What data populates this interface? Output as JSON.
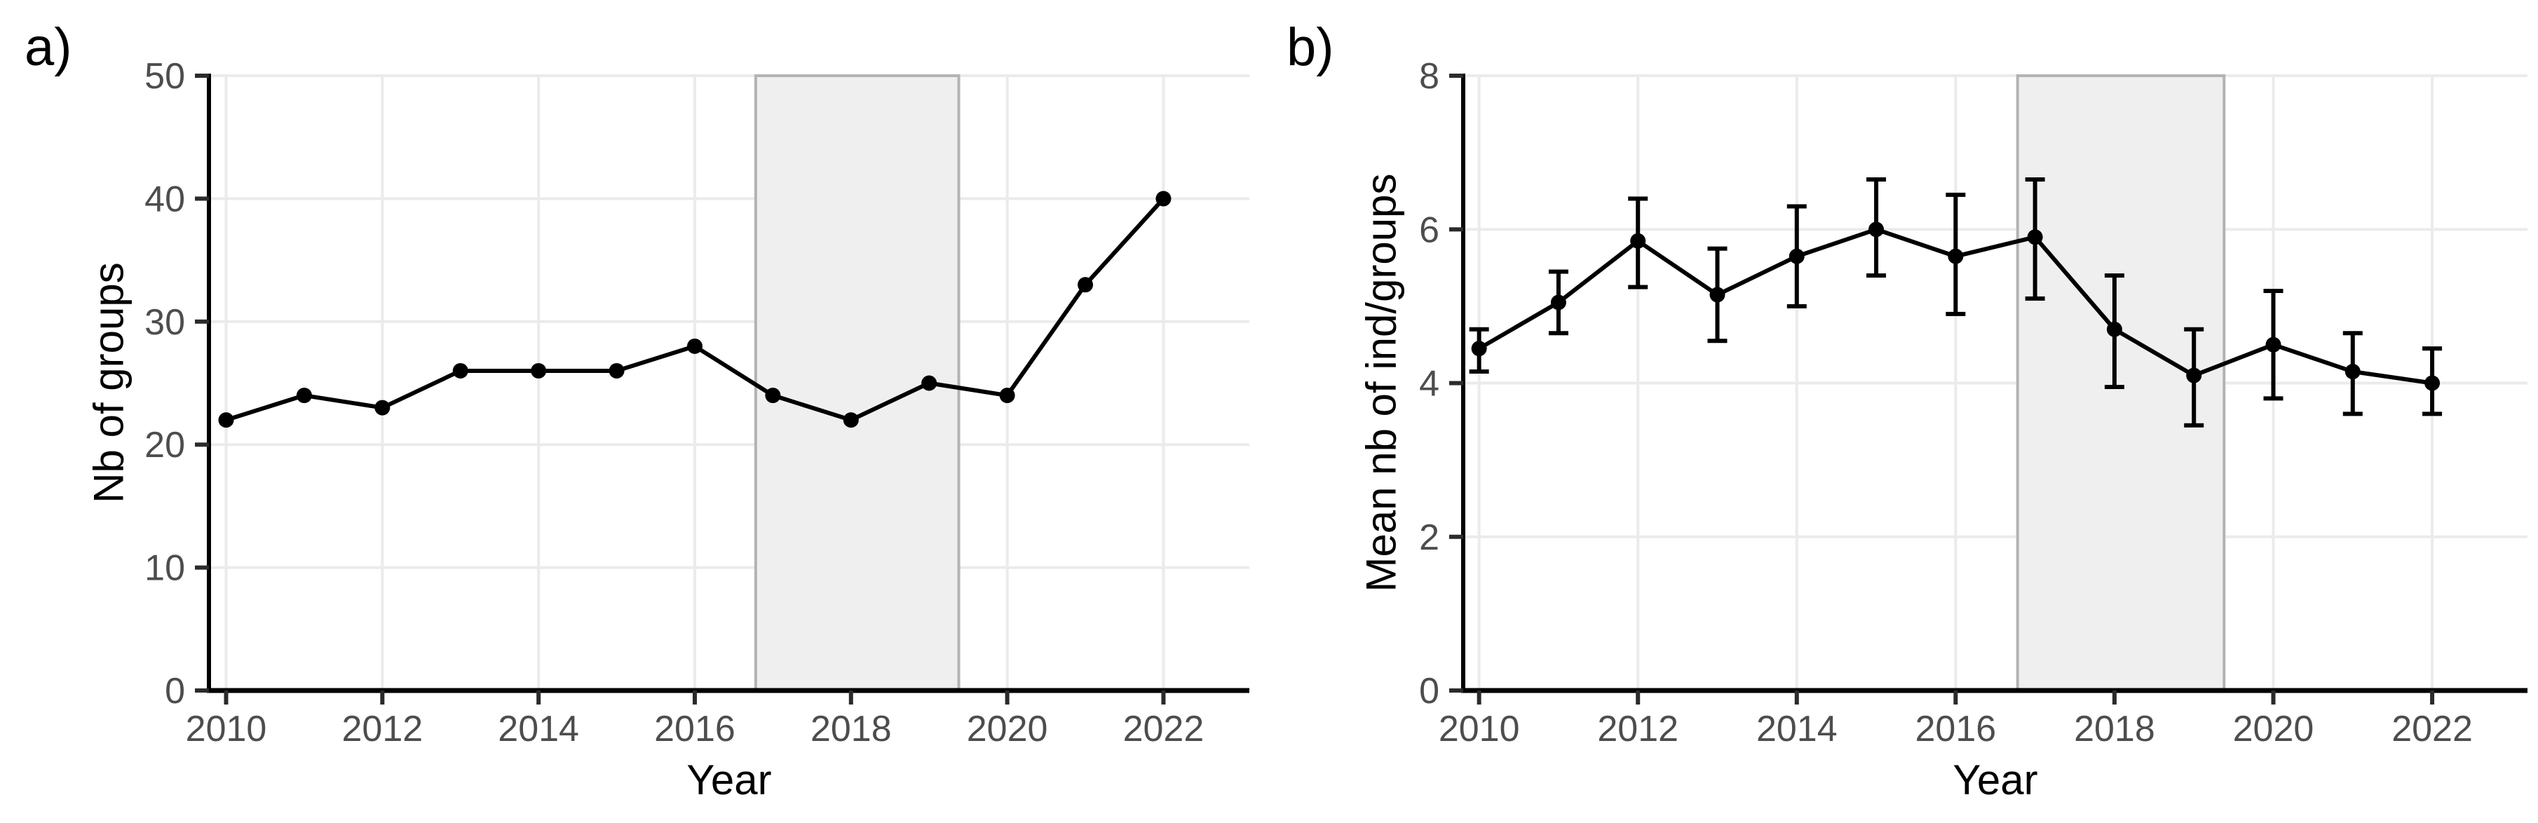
{
  "figure": {
    "background": "#ffffff"
  },
  "colors": {
    "background": "#ffffff",
    "grid": "#ebebeb",
    "axis": "#000000",
    "tick": "#2b2b2b",
    "tick_label": "#4d4d4d",
    "title": "#000000",
    "line": "#000000",
    "point": "#000000",
    "band_fill": "#efefef",
    "band_border": "#b3b3b3"
  },
  "chart_data": [
    {
      "type": "line",
      "panel_label": "a)",
      "title": "",
      "xlabel": "Year",
      "ylabel": "Nb of groups",
      "x": [
        2010,
        2011,
        2012,
        2013,
        2014,
        2015,
        2016,
        2017,
        2018,
        2019,
        2020,
        2021,
        2022
      ],
      "series": [
        {
          "name": "nb_of_groups",
          "values": [
            22,
            24,
            23,
            26,
            26,
            26,
            28,
            24,
            22,
            25,
            24,
            33,
            40
          ]
        }
      ],
      "x_ticks": [
        2010,
        2012,
        2014,
        2016,
        2018,
        2020,
        2022
      ],
      "y_ticks": [
        0,
        10,
        20,
        30,
        40,
        50
      ],
      "xlim": [
        2009.78,
        2023.1
      ],
      "ylim": [
        0,
        50
      ],
      "grid": true,
      "legend": "none",
      "shaded_region": {
        "xmin": 2016.78,
        "xmax": 2019.38
      }
    },
    {
      "type": "line",
      "panel_label": "b)",
      "title": "",
      "xlabel": "Year",
      "ylabel": "Mean nb of ind/groups",
      "x": [
        2010,
        2011,
        2012,
        2013,
        2014,
        2015,
        2016,
        2017,
        2018,
        2019,
        2020,
        2021,
        2022
      ],
      "series": [
        {
          "name": "mean_nb_of_ind_per_group",
          "values": [
            4.45,
            5.05,
            5.85,
            5.15,
            5.65,
            6.0,
            5.65,
            5.9,
            4.7,
            4.1,
            4.5,
            4.15,
            4.0
          ],
          "error_low": [
            4.15,
            4.65,
            5.25,
            4.55,
            5.0,
            5.4,
            4.9,
            5.1,
            3.95,
            3.45,
            3.8,
            3.6,
            3.6
          ],
          "error_high": [
            4.7,
            5.45,
            6.4,
            5.75,
            6.3,
            6.65,
            6.45,
            6.65,
            5.4,
            4.7,
            5.2,
            4.65,
            4.45
          ]
        }
      ],
      "x_ticks": [
        2010,
        2012,
        2014,
        2016,
        2018,
        2020,
        2022
      ],
      "y_ticks": [
        0,
        2,
        4,
        6,
        8
      ],
      "xlim": [
        2009.8,
        2023.2
      ],
      "ylim": [
        0,
        8
      ],
      "grid": true,
      "legend": "none",
      "shaded_region": {
        "xmin": 2016.78,
        "xmax": 2019.38
      }
    }
  ]
}
